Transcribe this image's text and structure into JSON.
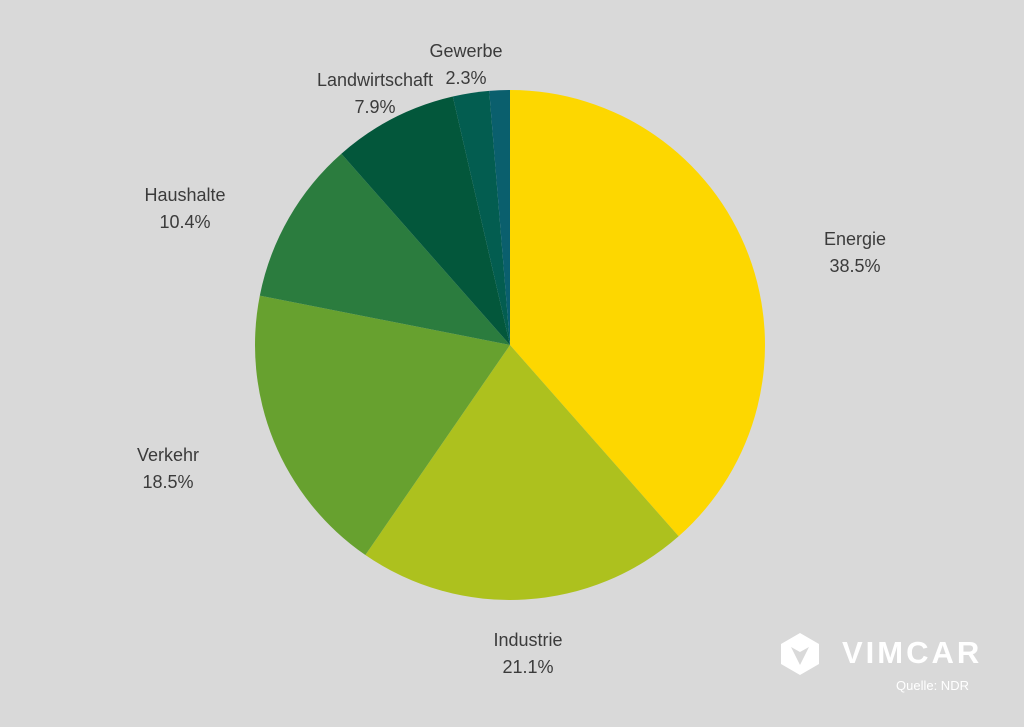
{
  "chart_data": {
    "type": "pie",
    "start_angle_deg": 0,
    "direction": "clockwise",
    "slices": [
      {
        "label": "Energie",
        "value": 38.5,
        "display": "38.5%",
        "color": "#fdd700"
      },
      {
        "label": "Industrie",
        "value": 21.1,
        "display": "21.1%",
        "color": "#adc11e"
      },
      {
        "label": "Verkehr",
        "value": 18.5,
        "display": "18.5%",
        "color": "#67a12f"
      },
      {
        "label": "Haushalte",
        "value": 10.4,
        "display": "10.4%",
        "color": "#2b7c3e"
      },
      {
        "label": "Landwirtschaft",
        "value": 7.9,
        "display": "7.9%",
        "color": "#03573b"
      },
      {
        "label": "Gewerbe",
        "value": 2.3,
        "display": "2.3%",
        "color": "#035d50"
      },
      {
        "label": "",
        "value": 1.3,
        "display": "",
        "color": "#0a5f6d"
      }
    ]
  },
  "brand": {
    "name": "VIMCAR",
    "source": "Quelle: NDR"
  }
}
